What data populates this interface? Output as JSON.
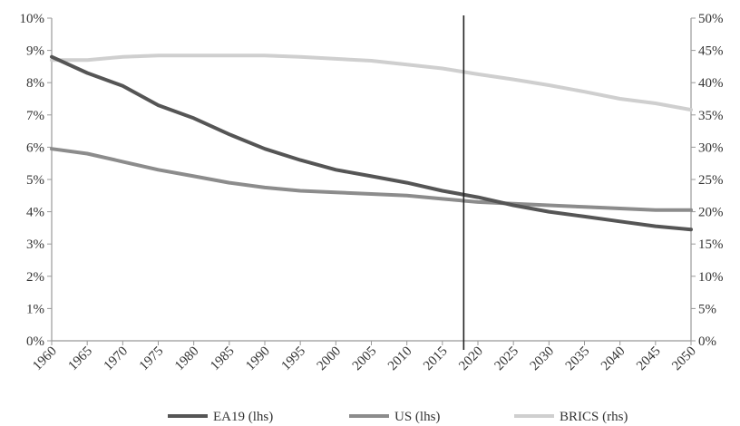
{
  "chart_data": {
    "type": "line",
    "title": "",
    "xlabel": "",
    "ylabel": "",
    "x_ticks": [
      "1960",
      "1965",
      "1970",
      "1975",
      "1980",
      "1985",
      "1990",
      "1995",
      "2000",
      "2005",
      "2010",
      "2015",
      "2020",
      "2025",
      "2030",
      "2035",
      "2040",
      "2045",
      "2050"
    ],
    "xlim": [
      1960,
      2050
    ],
    "ylim_left": [
      0,
      10
    ],
    "ylim_right": [
      0,
      50
    ],
    "left_ticks": [
      "0%",
      "1%",
      "2%",
      "3%",
      "4%",
      "5%",
      "6%",
      "7%",
      "8%",
      "9%",
      "10%"
    ],
    "right_ticks": [
      "0%",
      "5%",
      "10%",
      "15%",
      "20%",
      "25%",
      "30%",
      "35%",
      "40%",
      "45%",
      "50%"
    ],
    "vertical_marker_x": 2018,
    "grid": false,
    "legend_position": "bottom",
    "series": [
      {
        "name": "EA19 (lhs)",
        "axis": "left",
        "color": "#555555",
        "x": [
          1960,
          1965,
          1970,
          1975,
          1980,
          1985,
          1990,
          1995,
          2000,
          2005,
          2010,
          2015,
          2020,
          2025,
          2030,
          2035,
          2040,
          2045,
          2050
        ],
        "values": [
          8.8,
          8.3,
          7.9,
          7.3,
          6.9,
          6.4,
          5.95,
          5.6,
          5.3,
          5.1,
          4.9,
          4.65,
          4.45,
          4.2,
          4.0,
          3.85,
          3.7,
          3.55,
          3.45
        ]
      },
      {
        "name": "US (lhs)",
        "axis": "left",
        "color": "#8c8c8c",
        "x": [
          1960,
          1965,
          1970,
          1975,
          1980,
          1985,
          1990,
          1995,
          2000,
          2005,
          2010,
          2015,
          2020,
          2025,
          2030,
          2035,
          2040,
          2045,
          2050
        ],
        "values": [
          5.95,
          5.8,
          5.55,
          5.3,
          5.1,
          4.9,
          4.75,
          4.65,
          4.6,
          4.55,
          4.5,
          4.4,
          4.3,
          4.25,
          4.2,
          4.15,
          4.1,
          4.05,
          4.05
        ]
      },
      {
        "name": "BRICS (rhs)",
        "axis": "right",
        "color": "#cfcfcf",
        "x": [
          1960,
          1965,
          1970,
          1975,
          1980,
          1985,
          1990,
          1995,
          2000,
          2005,
          2010,
          2015,
          2020,
          2025,
          2030,
          2035,
          2040,
          2045,
          2050
        ],
        "values": [
          43.5,
          43.5,
          44.0,
          44.2,
          44.2,
          44.2,
          44.2,
          44.0,
          43.7,
          43.4,
          42.8,
          42.2,
          41.3,
          40.5,
          39.6,
          38.6,
          37.5,
          36.8,
          35.8
        ]
      }
    ]
  }
}
